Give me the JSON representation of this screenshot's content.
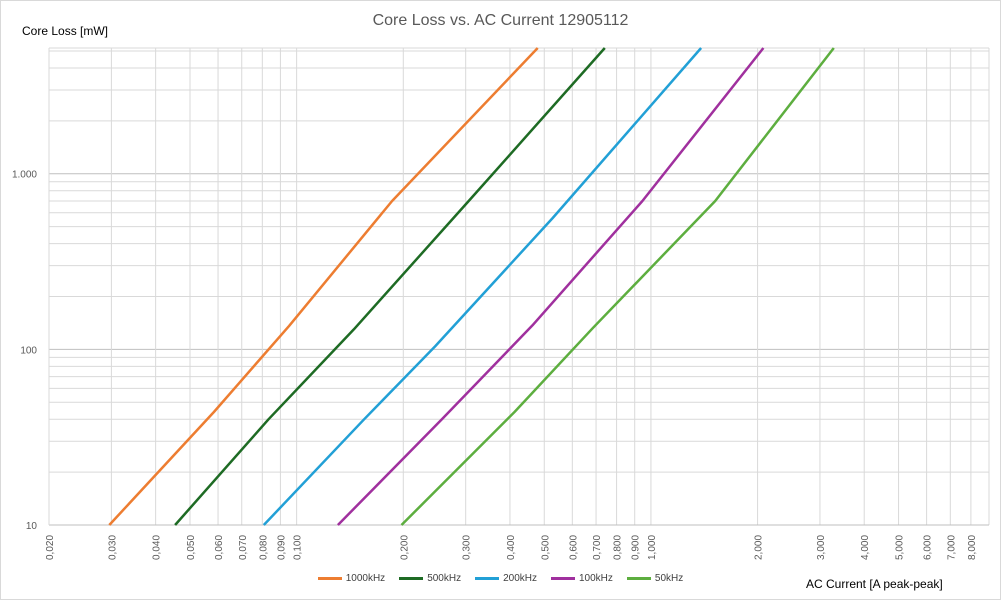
{
  "chart_data": {
    "type": "line",
    "title": "Core Loss vs. AC Current 12905112",
    "xlabel": "AC Current [A peak-peak]",
    "ylabel": "Core Loss [mW]",
    "x_scale": "log",
    "y_scale": "log",
    "xlim": [
      0.02,
      9
    ],
    "ylim": [
      10,
      5200
    ],
    "x_ticks": [
      0.02,
      0.03,
      0.04,
      0.05,
      0.06,
      0.07,
      0.08,
      0.09,
      0.1,
      0.2,
      0.3,
      0.4,
      0.5,
      0.6,
      0.7,
      0.8,
      0.9,
      1,
      2,
      3,
      4,
      5,
      6,
      7,
      8
    ],
    "x_tick_labels": [
      "0,020",
      "0,030",
      "0,040",
      "0,050",
      "0,060",
      "0,070",
      "0,080",
      "0,090",
      "0,100",
      "0,200",
      "0,300",
      "0,400",
      "0,500",
      "0,600",
      "0,700",
      "0,800",
      "0,900",
      "1,000",
      "2,000",
      "3,000",
      "4,000",
      "5,000",
      "6,000",
      "7,000",
      "8,000"
    ],
    "y_ticks": [
      10,
      100,
      1000
    ],
    "y_tick_labels": [
      "10",
      "100",
      "1.000"
    ],
    "grid": true,
    "legend_position": "bottom",
    "series": [
      {
        "name": "1000kHz",
        "color": "#ED7D31",
        "x": [
          0.0296,
          0.0584,
          0.0952,
          0.186,
          0.479
        ],
        "y": [
          10,
          44,
          136,
          700,
          5200
        ]
      },
      {
        "name": "500kHz",
        "color": "#1E6B24",
        "x": [
          0.0454,
          0.0833,
          0.145,
          0.306,
          0.741
        ],
        "y": [
          10,
          40,
          130,
          700,
          5200
        ]
      },
      {
        "name": "200kHz",
        "color": "#22A0D6",
        "x": [
          0.0808,
          0.155,
          0.246,
          0.528,
          1.386
        ],
        "y": [
          10,
          40,
          104,
          560,
          5200
        ]
      },
      {
        "name": "100kHz",
        "color": "#A0309E",
        "x": [
          0.1308,
          0.257,
          0.463,
          0.946,
          2.077
        ],
        "y": [
          10,
          40,
          137,
          700,
          5200
        ]
      },
      {
        "name": "50kHz",
        "color": "#5DAE3F",
        "x": [
          0.1977,
          0.412,
          0.685,
          1.519,
          3.282
        ],
        "y": [
          10,
          44,
          132,
          700,
          5200
        ]
      }
    ]
  }
}
